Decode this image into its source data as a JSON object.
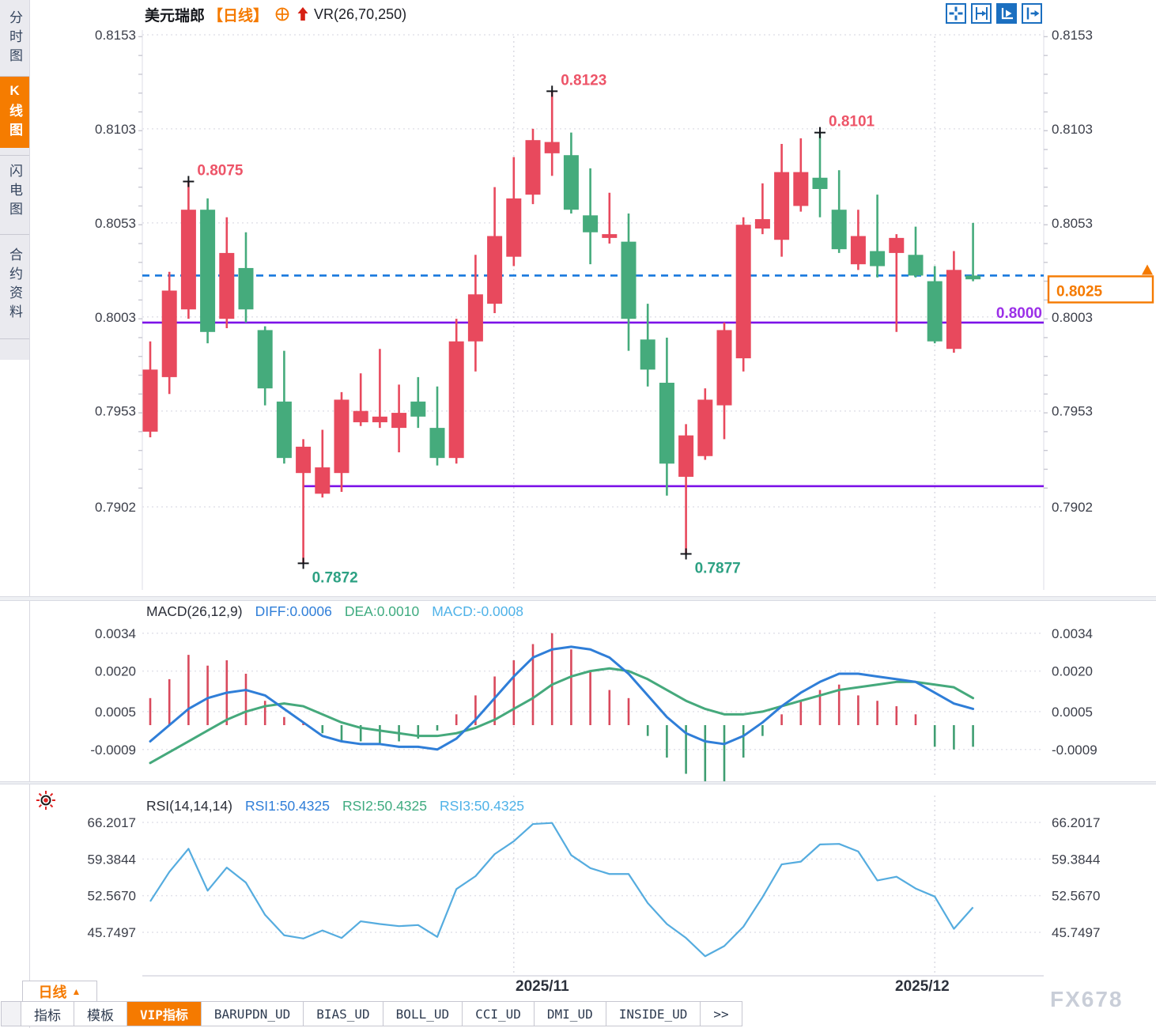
{
  "header": {
    "symbol": "美元瑞郎",
    "period": "【日线】",
    "indicator": "VR(26,70,250)"
  },
  "toolbar": {
    "icons": [
      "move-crosshair-icon",
      "fit-axis-icon",
      "auto-scale-icon",
      "goto-latest-icon"
    ]
  },
  "sidebar": {
    "tabs": [
      {
        "label": "分时图",
        "active": false
      },
      {
        "label": "K线图",
        "active": true
      },
      {
        "label": "闪电图",
        "active": false
      },
      {
        "label": "合约资料",
        "active": false
      }
    ]
  },
  "macd_header": {
    "name": "MACD(26,12,9)",
    "diff": "DIFF:0.0006",
    "dea": "DEA:0.0010",
    "macd": "MACD:-0.0008"
  },
  "rsi_header": {
    "name": "RSI(14,14,14)",
    "rsi1": "RSI1:50.4325",
    "rsi2": "RSI2:50.4325",
    "rsi3": "RSI3:50.4325"
  },
  "bottom": {
    "period_button": "日线",
    "period_arrow": "▲",
    "dates": [
      "2025/11",
      "2025/12"
    ],
    "tabs": [
      {
        "label": "指标",
        "active": false
      },
      {
        "label": "模板",
        "active": false
      },
      {
        "label": "VIP指标",
        "active": true
      },
      {
        "label": "BARUPDN_UD",
        "active": false
      },
      {
        "label": "BIAS_UD",
        "active": false
      },
      {
        "label": "BOLL_UD",
        "active": false
      },
      {
        "label": "CCI_UD",
        "active": false
      },
      {
        "label": "DMI_UD",
        "active": false
      },
      {
        "label": "INSIDE_UD",
        "active": false
      },
      {
        "label": ">>",
        "active": false
      }
    ],
    "watermark": "FX678"
  },
  "chart_data": {
    "type": "candlestick",
    "symbol": "美元瑞郎 (USD/CHF)",
    "timeframe": "日线 daily",
    "colors": {
      "up": "#e8495d",
      "down": "#45ab7c",
      "diff": "#2f7ed8",
      "dea": "#45a97c",
      "rsi": "#55acdf",
      "accent": "#f57a00",
      "purple": "#7c12e8",
      "dashed_blue": "#1778dd",
      "annotation_high": "#ed5468",
      "annotation_low": "#2da183"
    },
    "price_axis": [
      {
        "label": "0.8153",
        "value": 0.8153
      },
      {
        "label": "0.8103",
        "value": 0.8103
      },
      {
        "label": "0.8053",
        "value": 0.8053
      },
      {
        "label": "0.8003",
        "value": 0.8003
      },
      {
        "label": "0.7953",
        "value": 0.7953
      },
      {
        "label": "0.7902",
        "value": 0.7902
      }
    ],
    "macd_axis": [
      {
        "label": "0.0034",
        "value": 0.0034
      },
      {
        "label": "0.0020",
        "value": 0.002
      },
      {
        "label": "0.0005",
        "value": 0.0005
      },
      {
        "label": "-0.0009",
        "value": -0.0009
      }
    ],
    "rsi_axis": [
      {
        "label": "66.2017",
        "value": 66.2017
      },
      {
        "label": "59.3844",
        "value": 59.3844
      },
      {
        "label": "52.5670",
        "value": 52.567
      },
      {
        "label": "45.7497",
        "value": 45.7497
      }
    ],
    "x_dates": [
      {
        "label": "2025/11",
        "index": 19
      },
      {
        "label": "2025/12",
        "index": 41
      }
    ],
    "candles": [
      [
        0.7942,
        0.799,
        0.7939,
        0.7975
      ],
      [
        0.7971,
        0.8027,
        0.7962,
        0.8017
      ],
      [
        0.8007,
        0.8075,
        0.8002,
        0.806
      ],
      [
        0.806,
        0.8066,
        0.7989,
        0.7995
      ],
      [
        0.8002,
        0.8056,
        0.7997,
        0.8037
      ],
      [
        0.8029,
        0.8048,
        0.8,
        0.8007
      ],
      [
        0.7996,
        0.7998,
        0.7956,
        0.7965
      ],
      [
        0.7958,
        0.7985,
        0.7925,
        0.7928
      ],
      [
        0.792,
        0.7938,
        0.7872,
        0.7934
      ],
      [
        0.7909,
        0.7943,
        0.7907,
        0.7923
      ],
      [
        0.792,
        0.7963,
        0.791,
        0.7959
      ],
      [
        0.7947,
        0.7973,
        0.7945,
        0.7953
      ],
      [
        0.7947,
        0.7986,
        0.7944,
        0.795
      ],
      [
        0.7944,
        0.7967,
        0.7931,
        0.7952
      ],
      [
        0.7958,
        0.7971,
        0.7944,
        0.795
      ],
      [
        0.7944,
        0.7966,
        0.7924,
        0.7928
      ],
      [
        0.7928,
        0.8002,
        0.7925,
        0.799
      ],
      [
        0.799,
        0.8036,
        0.7974,
        0.8015
      ],
      [
        0.801,
        0.8072,
        0.8005,
        0.8046
      ],
      [
        0.8035,
        0.8088,
        0.803,
        0.8066
      ],
      [
        0.8068,
        0.8103,
        0.8063,
        0.8097
      ],
      [
        0.809,
        0.8123,
        0.8078,
        0.8096
      ],
      [
        0.8089,
        0.8101,
        0.8058,
        0.806
      ],
      [
        0.8057,
        0.8082,
        0.8031,
        0.8048
      ],
      [
        0.8045,
        0.8069,
        0.8042,
        0.8047
      ],
      [
        0.8043,
        0.8058,
        0.7985,
        0.8002
      ],
      [
        0.7991,
        0.801,
        0.7966,
        0.7975
      ],
      [
        0.7968,
        0.7992,
        0.7908,
        0.7925
      ],
      [
        0.7918,
        0.7946,
        0.7877,
        0.794
      ],
      [
        0.7929,
        0.7965,
        0.7927,
        0.7959
      ],
      [
        0.7956,
        0.8,
        0.7938,
        0.7996
      ],
      [
        0.7981,
        0.8056,
        0.7974,
        0.8052
      ],
      [
        0.805,
        0.8074,
        0.8047,
        0.8055
      ],
      [
        0.8044,
        0.8095,
        0.8035,
        0.808
      ],
      [
        0.8062,
        0.8098,
        0.8059,
        0.808
      ],
      [
        0.8077,
        0.8101,
        0.8056,
        0.8071
      ],
      [
        0.806,
        0.8081,
        0.8037,
        0.8039
      ],
      [
        0.8031,
        0.806,
        0.8028,
        0.8046
      ],
      [
        0.8038,
        0.8068,
        0.8024,
        0.803
      ],
      [
        0.8037,
        0.8047,
        0.7995,
        0.8045
      ],
      [
        0.8036,
        0.8051,
        0.8024,
        0.8025
      ],
      [
        0.8022,
        0.803,
        0.7989,
        0.799
      ],
      [
        0.7986,
        0.8038,
        0.7984,
        0.8028
      ],
      [
        0.8025,
        0.8053,
        0.8022,
        0.8023
      ]
    ],
    "annotations": [
      {
        "index": 2,
        "price": 0.8075,
        "label": "0.8075",
        "kind": "peak"
      },
      {
        "index": 21,
        "price": 0.8123,
        "label": "0.8123",
        "kind": "peak"
      },
      {
        "index": 35,
        "price": 0.8101,
        "label": "0.8101",
        "kind": "peak"
      },
      {
        "index": 8,
        "price": 0.7872,
        "label": "0.7872",
        "kind": "trough"
      },
      {
        "index": 28,
        "price": 0.7877,
        "label": "0.7877",
        "kind": "trough"
      }
    ],
    "hlines": [
      {
        "price": 0.8025,
        "style": "dashed",
        "color": "#1778dd"
      },
      {
        "price": 0.8,
        "style": "solid",
        "color": "#7c12e8",
        "label": "0.8000"
      },
      {
        "price": 0.7913,
        "style": "solid",
        "color": "#7c12e8",
        "start_index": 8
      }
    ],
    "current_price": {
      "label": "0.8025",
      "value": 0.8025
    },
    "macd": {
      "hist": [
        0.001,
        0.0017,
        0.0026,
        0.0022,
        0.0024,
        0.0019,
        0.0009,
        0.0003,
        0.0001,
        -0.0003,
        -0.0006,
        -0.0006,
        -0.0007,
        -0.0006,
        -0.0005,
        -0.0002,
        0.0004,
        0.0011,
        0.0018,
        0.0024,
        0.003,
        0.0034,
        0.0028,
        0.002,
        0.0013,
        0.001,
        -0.0004,
        -0.0012,
        -0.0018,
        -0.0025,
        -0.0021,
        -0.0012,
        -0.0004,
        0.0004,
        0.0009,
        0.0013,
        0.0015,
        0.0011,
        0.0009,
        0.0007,
        0.0004,
        -0.0008,
        -0.0009,
        -0.0008
      ],
      "diff": [
        -0.0006,
        0.0,
        0.0006,
        0.001,
        0.0012,
        0.0013,
        0.0011,
        0.0006,
        0.0001,
        -0.0004,
        -0.0006,
        -0.0007,
        -0.0007,
        -0.0008,
        -0.0008,
        -0.0009,
        -0.0005,
        0.0002,
        0.001,
        0.0018,
        0.0025,
        0.0028,
        0.0029,
        0.0028,
        0.0025,
        0.0019,
        0.0011,
        0.0003,
        -0.0003,
        -0.0006,
        -0.0007,
        -0.0004,
        0.0001,
        0.0007,
        0.0012,
        0.0016,
        0.0019,
        0.0019,
        0.0018,
        0.0017,
        0.0016,
        0.0012,
        0.0008,
        0.0006
      ],
      "dea": [
        -0.0014,
        -0.001,
        -0.0006,
        -0.0002,
        0.0002,
        0.0005,
        0.0007,
        0.0008,
        0.0007,
        0.0004,
        0.0001,
        -0.0001,
        -0.0002,
        -0.0003,
        -0.0004,
        -0.0004,
        -0.0003,
        -0.0001,
        0.0002,
        0.0006,
        0.001,
        0.0015,
        0.0018,
        0.002,
        0.0021,
        0.002,
        0.0017,
        0.0013,
        0.0009,
        0.0006,
        0.0004,
        0.0004,
        0.0005,
        0.0007,
        0.0009,
        0.0011,
        0.0013,
        0.0014,
        0.0015,
        0.0016,
        0.0016,
        0.0015,
        0.0014,
        0.001
      ]
    },
    "rsi": [
      51.5,
      57.0,
      61.3,
      53.5,
      57.8,
      55.0,
      49.0,
      45.2,
      44.6,
      46.1,
      44.7,
      47.8,
      47.3,
      46.9,
      47.1,
      44.9,
      53.8,
      56.2,
      60.3,
      62.7,
      65.9,
      66.1,
      60.1,
      57.7,
      56.6,
      56.6,
      51.2,
      47.3,
      44.7,
      41.3,
      43.2,
      46.8,
      52.3,
      58.4,
      58.9,
      62.1,
      62.2,
      60.8,
      55.4,
      56.1,
      53.9,
      52.4,
      46.4,
      50.4
    ]
  }
}
